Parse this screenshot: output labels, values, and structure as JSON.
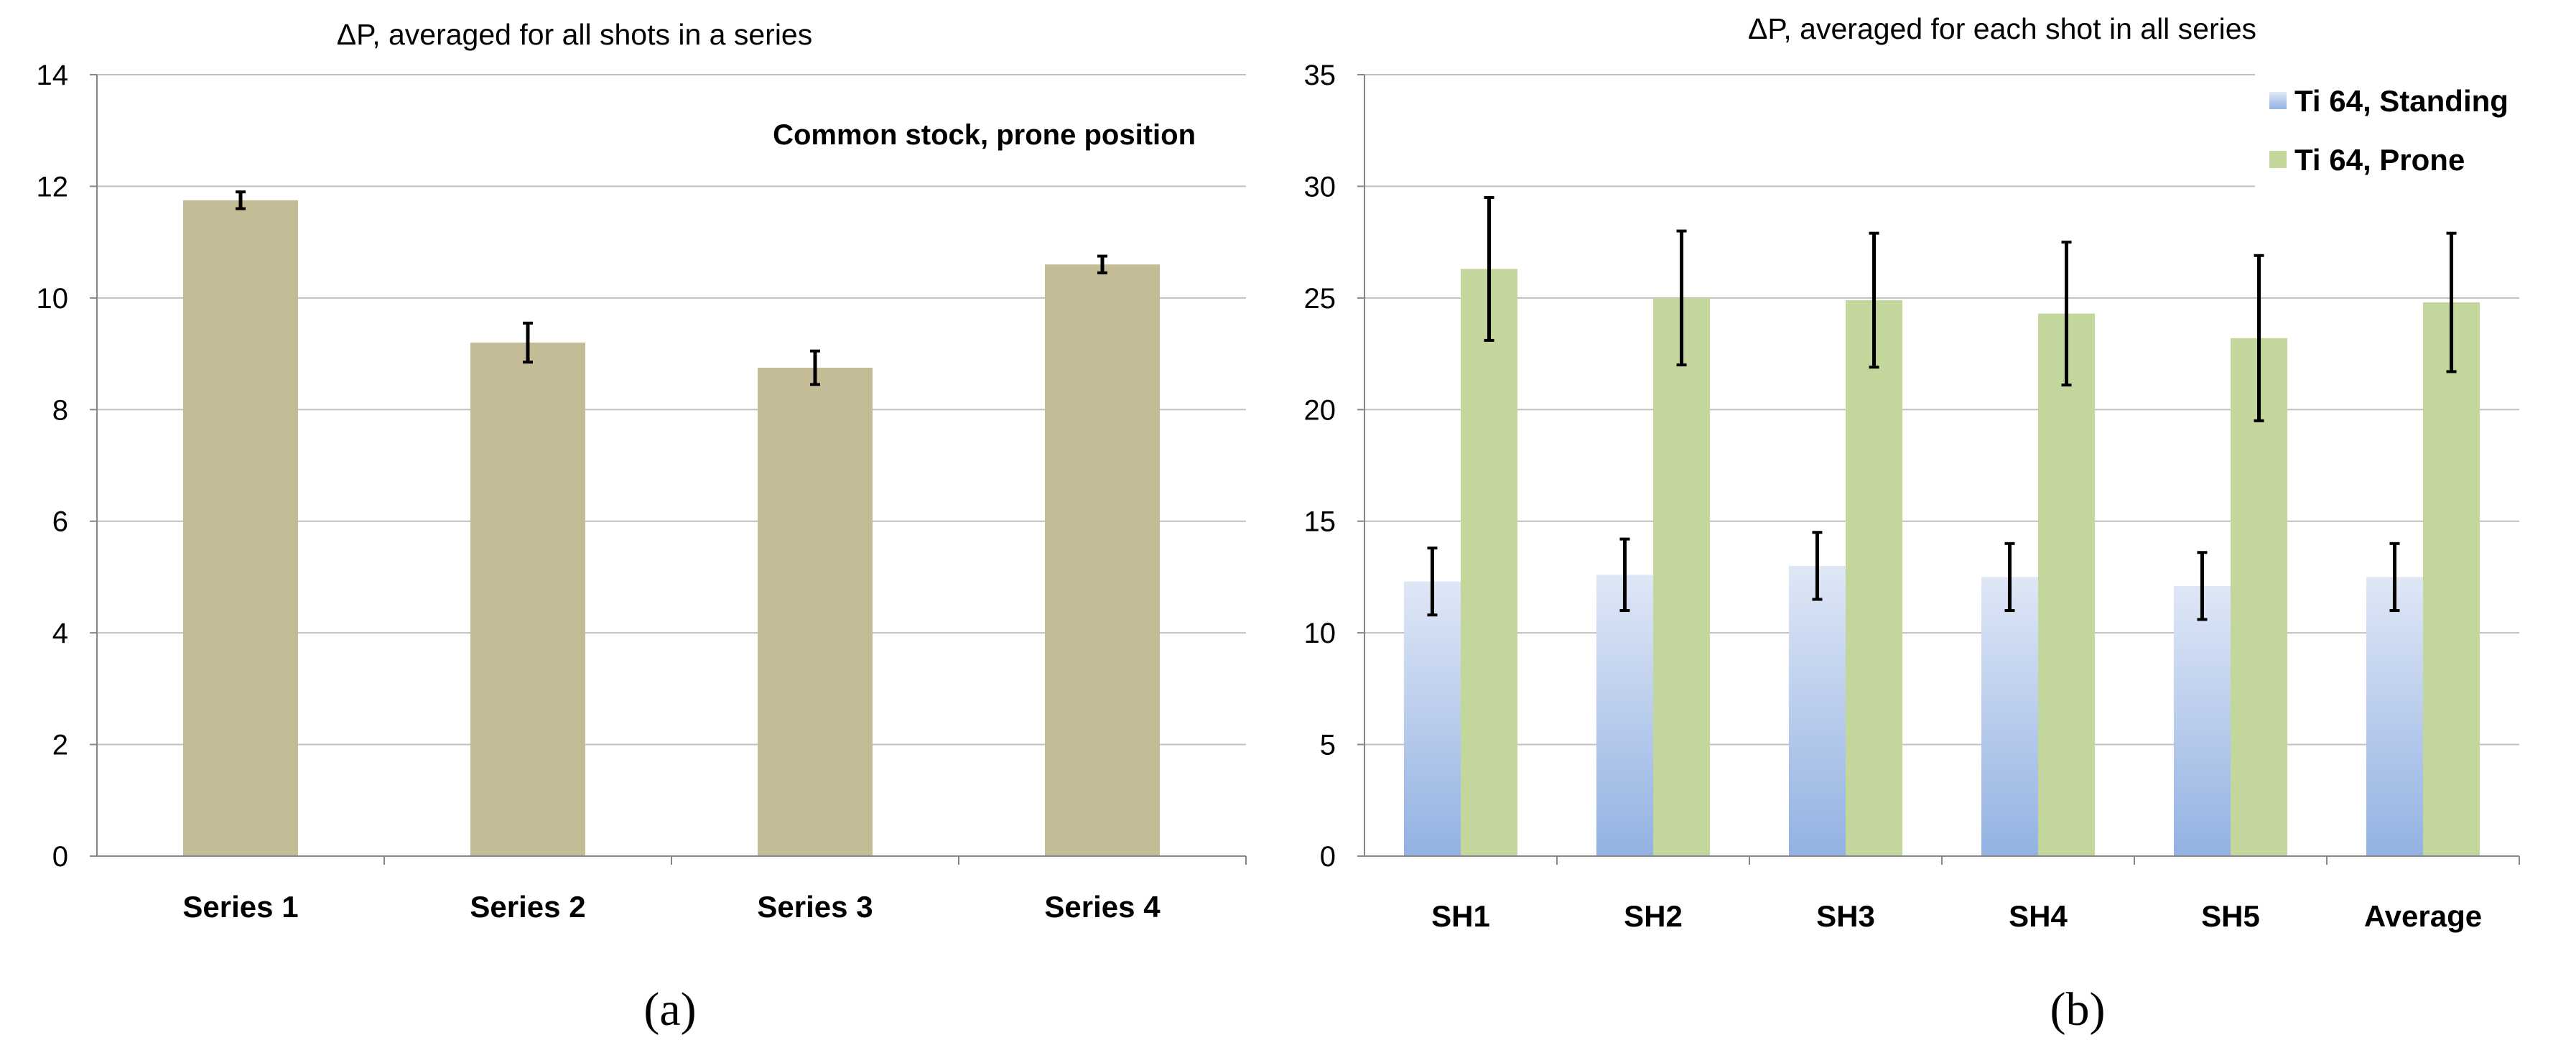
{
  "colors": {
    "bar_a": "#c4bc96",
    "standing_top": "#dfe7f6",
    "standing_bottom": "#93b2e2",
    "prone": "#c3d69b",
    "grid": "#bfbfbf",
    "axis": "#868686",
    "error": "#000000"
  },
  "chart_data": [
    {
      "type": "bar",
      "panel_label": "(a)",
      "title": "ΔP, averaged for all shots in a series",
      "annotation": "Common stock, prone position",
      "xlabel": "",
      "ylabel": "",
      "categories": [
        "Series 1",
        "Series 2",
        "Series 3",
        "Series 4"
      ],
      "series": [
        {
          "name": "Common stock, prone position",
          "values": [
            11.75,
            9.2,
            8.75,
            10.6
          ],
          "errors": [
            0.15,
            0.35,
            0.3,
            0.15
          ]
        }
      ],
      "ylim": [
        0,
        14
      ],
      "yticks": [
        "0",
        "2",
        "4",
        "6",
        "8",
        "10",
        "12",
        "14"
      ],
      "grid": true,
      "legend": "none"
    },
    {
      "type": "bar",
      "panel_label": "(b)",
      "title": "ΔP, averaged for each shot in all series",
      "xlabel": "",
      "ylabel": "",
      "categories": [
        "SH1",
        "SH2",
        "SH3",
        "SH4",
        "SH5",
        "Average"
      ],
      "series": [
        {
          "name": "Ti 64, Standing",
          "values": [
            12.3,
            12.6,
            13.0,
            12.5,
            12.1,
            12.5
          ],
          "errors": [
            1.5,
            1.6,
            1.5,
            1.5,
            1.5,
            1.5
          ]
        },
        {
          "name": "Ti 64, Prone",
          "values": [
            26.3,
            25.0,
            24.9,
            24.3,
            23.2,
            24.8
          ],
          "errors": [
            3.2,
            3.0,
            3.0,
            3.2,
            3.7,
            3.1
          ]
        }
      ],
      "ylim": [
        0,
        35
      ],
      "yticks": [
        "0",
        "5",
        "10",
        "15",
        "20",
        "25",
        "30",
        "35"
      ],
      "grid": true,
      "legend": "top-right"
    }
  ]
}
